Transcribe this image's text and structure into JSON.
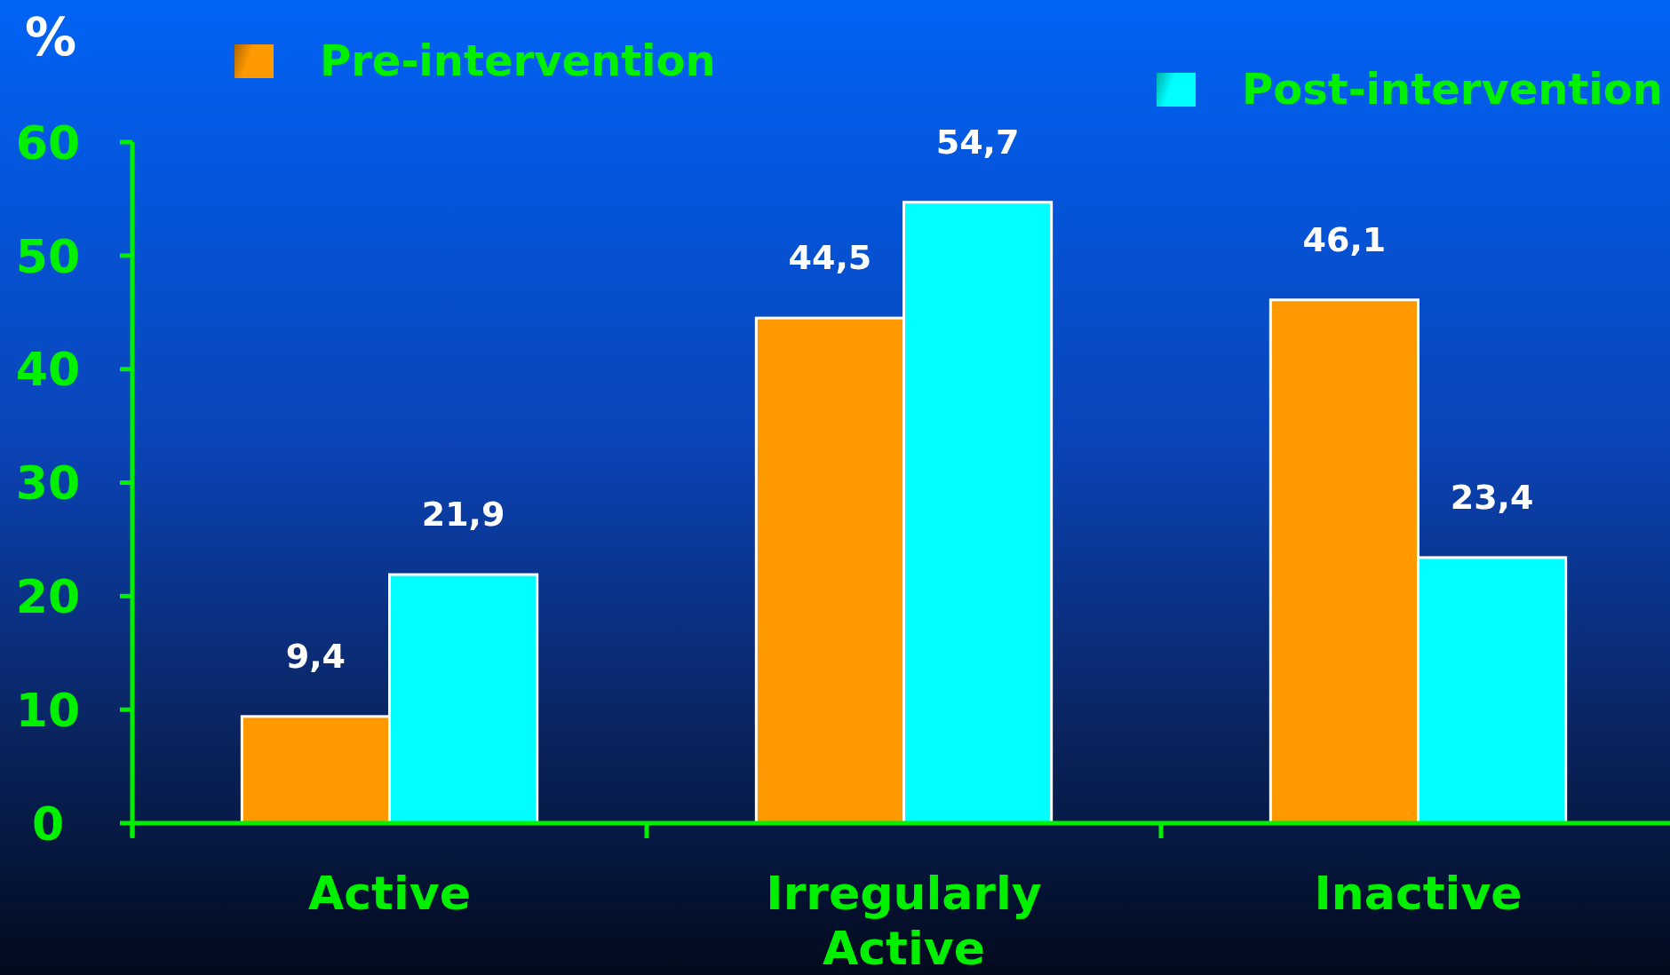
{
  "chart_data": {
    "type": "bar",
    "ylabel": "%",
    "categories": [
      "Active",
      "Irregularly Active",
      "Inactive"
    ],
    "series": [
      {
        "name": "Pre-intervention",
        "color": "#ff9900",
        "values": [
          9.4,
          44.5,
          46.1
        ],
        "value_labels": [
          "9,4",
          "44,5",
          "46,1"
        ]
      },
      {
        "name": "Post-intervention",
        "color": "#00ffff",
        "values": [
          21.9,
          54.7,
          23.4
        ],
        "value_labels": [
          "21,9",
          "54,7",
          "23,4"
        ]
      }
    ],
    "ylim": [
      0,
      60
    ],
    "yticks": [
      0,
      10,
      20,
      30,
      40,
      50,
      60
    ],
    "grid": false,
    "legend": "top"
  }
}
